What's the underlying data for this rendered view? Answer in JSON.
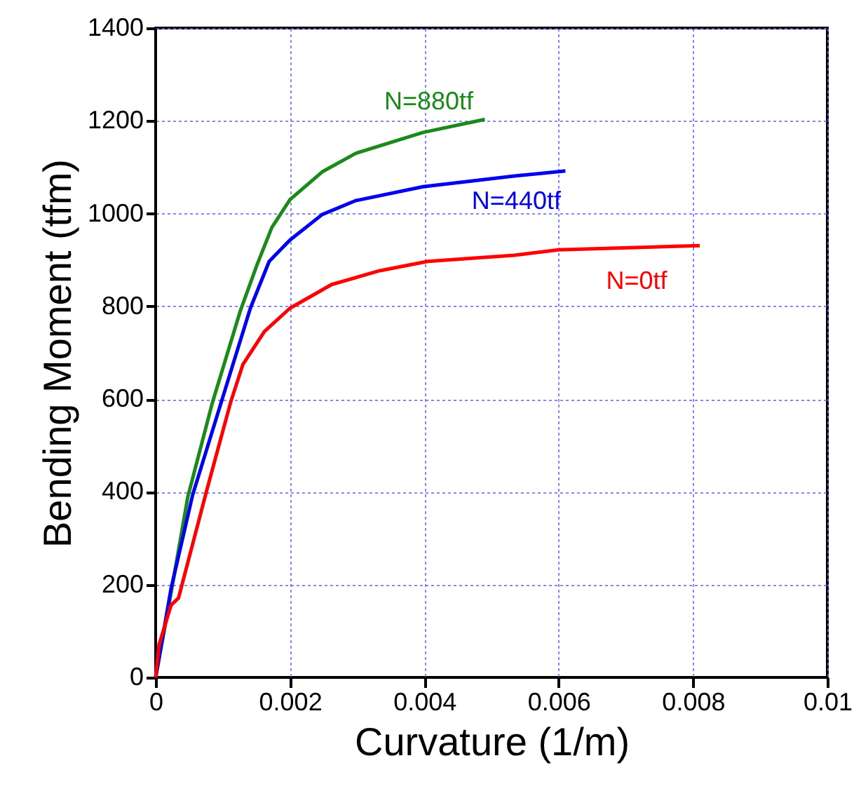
{
  "chart_data": {
    "type": "line",
    "xlabel": "Curvature (1/m)",
    "ylabel": "Bending Moment (tfm)",
    "xlim": [
      0,
      0.01
    ],
    "ylim": [
      0,
      1400
    ],
    "xticks": [
      0,
      0.002,
      0.004,
      0.006,
      0.008,
      0.01
    ],
    "yticks": [
      0,
      200,
      400,
      600,
      800,
      1000,
      1200,
      1400
    ],
    "grid": true,
    "marker": "none",
    "line_style": "solid",
    "series": [
      {
        "name": "N=880tf",
        "color": "#1a8a1a",
        "x": [
          0,
          0.00019,
          0.00048,
          0.00084,
          0.00126,
          0.00151,
          0.00173,
          0.002,
          0.00248,
          0.00298,
          0.00398,
          0.0049
        ],
        "values": [
          0,
          150,
          390,
          590,
          790,
          890,
          970,
          1030,
          1090,
          1130,
          1175,
          1203
        ]
      },
      {
        "name": "N=440tf",
        "color": "#0000ee",
        "x": [
          0,
          0.00023,
          0.00055,
          0.00098,
          0.00141,
          0.00169,
          0.002,
          0.00248,
          0.00298,
          0.00398,
          0.00534,
          0.0061
        ],
        "values": [
          0,
          192,
          393,
          595,
          796,
          897,
          943,
          998,
          1028,
          1058,
          1081,
          1092
        ]
      },
      {
        "name": "N=0tf",
        "color": "#ff0000",
        "x": [
          0,
          5e-05,
          0.00023,
          0.00034,
          0.00076,
          0.00112,
          0.0013,
          0.00162,
          0.002,
          0.00262,
          0.00334,
          0.00405,
          0.00534,
          0.006,
          0.0081
        ],
        "values": [
          0,
          70,
          156,
          171,
          403,
          595,
          675,
          746,
          796,
          847,
          877,
          897,
          910,
          922,
          931
        ]
      }
    ]
  }
}
